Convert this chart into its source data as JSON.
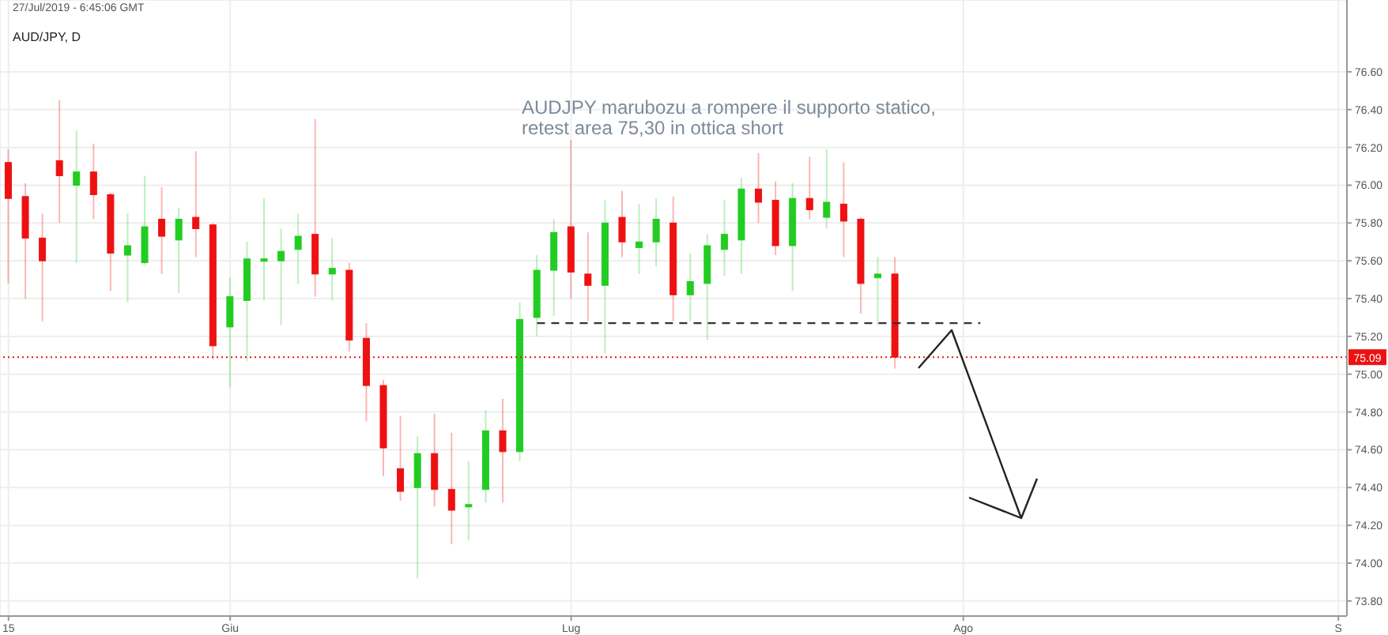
{
  "chart_data": {
    "type": "candlestick",
    "title": "AUD/JPY, D",
    "subtitle": "27/Jul/2019 - 6:45:06 GMT",
    "annotations": [
      "AUDJPY marubozu a rompere il supporto statico,\nretest area 75,30 in ottica short"
    ],
    "categories": [
      "15",
      null,
      null,
      null,
      null,
      null,
      null,
      null,
      null,
      null,
      null,
      null,
      null,
      "Giu",
      null,
      null,
      null,
      null,
      null,
      null,
      null,
      null,
      null,
      null,
      null,
      null,
      null,
      null,
      null,
      null,
      null,
      null,
      null,
      "Lug",
      null,
      null,
      null,
      null,
      null,
      null,
      null,
      null,
      null,
      null,
      null,
      null,
      null,
      null,
      null,
      null,
      null,
      null,
      null,
      null,
      null,
      null,
      "Ago",
      null,
      null,
      null,
      null,
      null,
      null,
      null,
      null,
      null,
      null,
      null,
      null,
      null,
      null,
      null,
      null,
      null,
      null,
      null,
      null,
      null,
      "S"
    ],
    "ohlc": [
      [
        76.12,
        76.19,
        75.48,
        75.93
      ],
      [
        75.94,
        76.01,
        75.4,
        75.72
      ],
      [
        75.72,
        75.85,
        75.28,
        75.6
      ],
      [
        76.13,
        76.45,
        75.8,
        76.05
      ],
      [
        76.0,
        76.29,
        75.59,
        76.07
      ],
      [
        76.07,
        76.22,
        75.82,
        75.95
      ],
      [
        75.95,
        75.96,
        75.44,
        75.64
      ],
      [
        75.63,
        75.85,
        75.38,
        75.68
      ],
      [
        75.59,
        76.05,
        75.58,
        75.78
      ],
      [
        75.82,
        75.99,
        75.53,
        75.73
      ],
      [
        75.71,
        75.88,
        75.43,
        75.82
      ],
      [
        75.83,
        76.18,
        75.62,
        75.77
      ],
      [
        75.79,
        75.8,
        75.08,
        75.15
      ],
      [
        75.25,
        75.51,
        74.93,
        75.41
      ],
      [
        75.39,
        75.7,
        75.07,
        75.61
      ],
      [
        75.6,
        75.93,
        75.39,
        75.61
      ],
      [
        75.6,
        75.77,
        75.26,
        75.65
      ],
      [
        75.66,
        75.85,
        75.48,
        75.73
      ],
      [
        75.74,
        76.35,
        75.41,
        75.53
      ],
      [
        75.53,
        75.72,
        75.39,
        75.56
      ],
      [
        75.55,
        75.59,
        75.12,
        75.18
      ],
      [
        75.19,
        75.27,
        74.75,
        74.94
      ],
      [
        74.94,
        74.97,
        74.46,
        74.61
      ],
      [
        74.5,
        74.78,
        74.33,
        74.38
      ],
      [
        74.4,
        74.67,
        73.92,
        74.58
      ],
      [
        74.58,
        74.79,
        74.3,
        74.39
      ],
      [
        74.39,
        74.69,
        74.1,
        74.28
      ],
      [
        74.3,
        74.54,
        74.12,
        74.31
      ],
      [
        74.39,
        74.81,
        74.32,
        74.7
      ],
      [
        74.7,
        74.87,
        74.32,
        74.59
      ],
      [
        74.59,
        75.38,
        74.54,
        75.29
      ],
      [
        75.3,
        75.63,
        75.2,
        75.55
      ],
      [
        75.55,
        75.82,
        75.31,
        75.75
      ],
      [
        75.78,
        76.24,
        75.4,
        75.54
      ],
      [
        75.53,
        75.75,
        75.28,
        75.47
      ],
      [
        75.47,
        75.92,
        75.11,
        75.8
      ],
      [
        75.83,
        75.97,
        75.62,
        75.7
      ],
      [
        75.67,
        75.9,
        75.53,
        75.7
      ],
      [
        75.7,
        75.93,
        75.57,
        75.82
      ],
      [
        75.8,
        75.94,
        75.28,
        75.42
      ],
      [
        75.42,
        75.64,
        75.28,
        75.49
      ],
      [
        75.48,
        75.74,
        75.18,
        75.68
      ],
      [
        75.66,
        75.92,
        75.52,
        75.74
      ],
      [
        75.71,
        76.04,
        75.53,
        75.98
      ],
      [
        75.98,
        76.17,
        75.8,
        75.91
      ],
      [
        75.92,
        76.02,
        75.63,
        75.68
      ],
      [
        75.68,
        76.01,
        75.44,
        75.93
      ],
      [
        75.93,
        76.15,
        75.82,
        75.87
      ],
      [
        75.83,
        76.19,
        75.77,
        75.91
      ],
      [
        75.9,
        76.12,
        75.62,
        75.81
      ],
      [
        75.82,
        75.83,
        75.32,
        75.48
      ],
      [
        75.51,
        75.62,
        75.26,
        75.53
      ],
      [
        75.53,
        75.62,
        75.03,
        75.09
      ],
      null,
      null,
      null,
      null,
      null,
      null,
      null,
      null,
      null,
      null,
      null,
      null,
      null,
      null,
      null,
      null,
      null,
      null,
      null,
      null,
      null,
      null,
      null,
      null,
      null,
      null
    ],
    "colors": [
      "#ee1111",
      "#ee1111",
      "#ee1111",
      "#ee1111",
      "#22cc22",
      "#ee1111",
      "#ee1111",
      "#22cc22",
      "#22cc22",
      "#ee1111",
      "#22cc22",
      "#ee1111",
      "#ee1111",
      "#22cc22",
      "#22cc22",
      "#22cc22",
      "#22cc22",
      "#22cc22",
      "#ee1111",
      "#22cc22",
      "#ee1111",
      "#ee1111",
      "#ee1111",
      "#ee1111",
      "#22cc22",
      "#ee1111",
      "#ee1111",
      "#22cc22",
      "#22cc22",
      "#ee1111",
      "#22cc22",
      "#22cc22",
      "#22cc22",
      "#ee1111",
      "#ee1111",
      "#22cc22",
      "#ee1111",
      "#22cc22",
      "#22cc22",
      "#ee1111",
      "#22cc22",
      "#22cc22",
      "#22cc22",
      "#22cc22",
      "#ee1111",
      "#ee1111",
      "#22cc22",
      "#ee1111",
      "#22cc22",
      "#ee1111",
      "#ee1111",
      "#22cc22",
      "#ee1111",
      null,
      null,
      null,
      null,
      null,
      null,
      null,
      null,
      null,
      null,
      null,
      null,
      null,
      null,
      null,
      null,
      null,
      null,
      null,
      null,
      null,
      null,
      null,
      null,
      null,
      null
    ],
    "series": [
      {
        "type": "line",
        "color": "#333333",
        "line_style": "dashed",
        "values": [
          null,
          null,
          null,
          null,
          null,
          null,
          null,
          null,
          null,
          null,
          null,
          null,
          null,
          null,
          null,
          null,
          null,
          null,
          null,
          null,
          null,
          null,
          null,
          null,
          null,
          null,
          null,
          null,
          null,
          null,
          null,
          75.27,
          75.27,
          75.27,
          75.27,
          75.27,
          75.27,
          75.27,
          75.27,
          75.27,
          75.27,
          75.27,
          75.27,
          75.27,
          75.27,
          75.27,
          75.27,
          75.27,
          75.27,
          75.27,
          75.27,
          75.27,
          75.27,
          75.27,
          75.27,
          75.27,
          75.27,
          75.27,
          null,
          null,
          null,
          null,
          null,
          null,
          null,
          null,
          null,
          null,
          null,
          null,
          null,
          null,
          null,
          null,
          null,
          null,
          null,
          null,
          null
        ]
      }
    ],
    "ref_lines": [
      {
        "axis": "y",
        "value": 75.09,
        "label": "75.09",
        "color": "#ee1111",
        "line_style": "dotted"
      }
    ],
    "ylim": [
      73.72,
      76.98
    ],
    "yticks": [
      {
        "value": 73.8,
        "label": "73.80"
      },
      {
        "value": 74.0,
        "label": "74.00"
      },
      {
        "value": 74.2,
        "label": "74.20"
      },
      {
        "value": 74.4,
        "label": "74.40"
      },
      {
        "value": 74.6,
        "label": "74.60"
      },
      {
        "value": 74.8,
        "label": "74.80"
      },
      {
        "value": 75.0,
        "label": "75.00"
      },
      {
        "value": 75.2,
        "label": "75.20"
      },
      {
        "value": 75.4,
        "label": "75.40"
      },
      {
        "value": 75.6,
        "label": "75.60"
      },
      {
        "value": 75.8,
        "label": "75.80"
      },
      {
        "value": 76.0,
        "label": "76.00"
      },
      {
        "value": 76.2,
        "label": "76.20"
      },
      {
        "value": 76.4,
        "label": "76.40"
      },
      {
        "value": 76.6,
        "label": "76.60"
      }
    ],
    "grid": true
  }
}
